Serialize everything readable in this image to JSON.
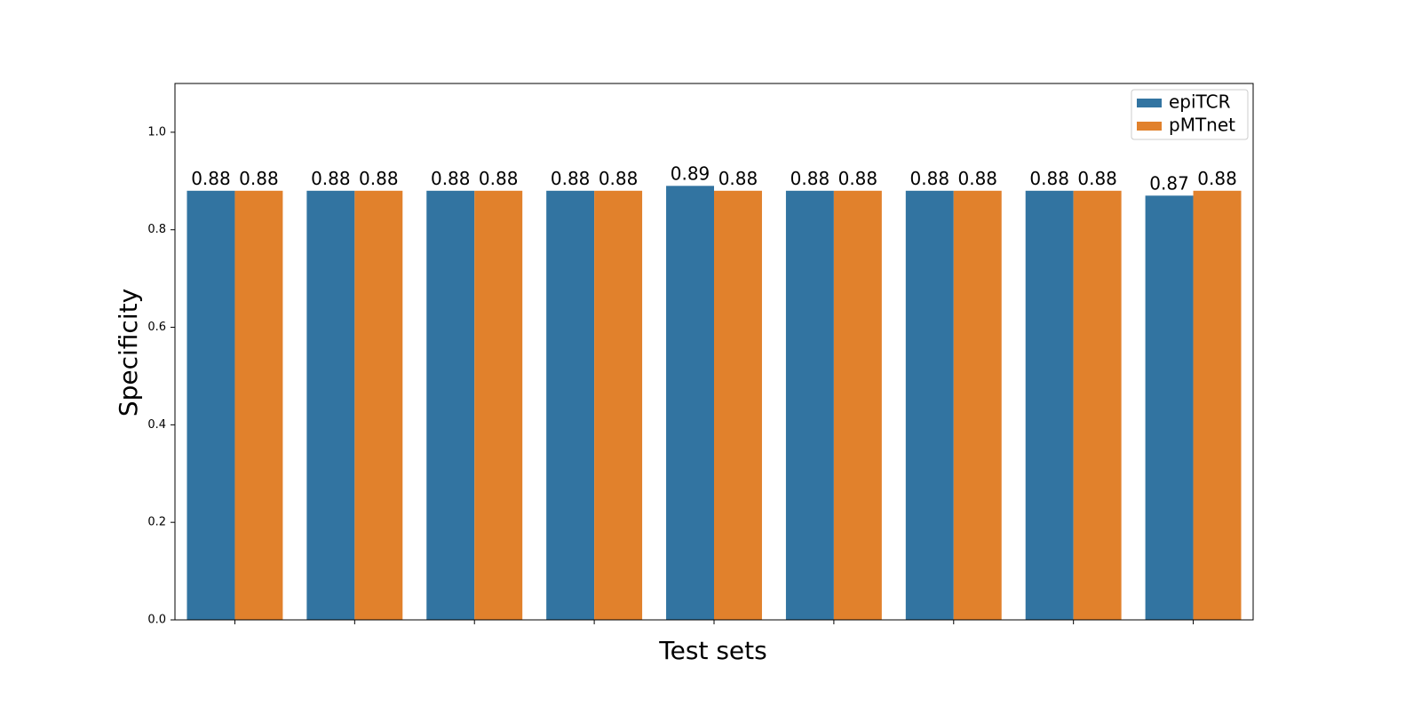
{
  "chart_data": {
    "type": "bar",
    "title": "",
    "xlabel": "Test sets",
    "ylabel": "Specificity",
    "ylim": [
      0,
      1.1
    ],
    "yticks": [
      0.0,
      0.2,
      0.4,
      0.6,
      0.8,
      1.0
    ],
    "ytick_labels": [
      "0.0",
      "0.2",
      "0.4",
      "0.6",
      "0.8",
      "1.0"
    ],
    "categories": [
      "",
      "",
      "",
      "",
      "",
      "",
      "",
      "",
      ""
    ],
    "series": [
      {
        "name": "epiTCR",
        "color": "#3274a1",
        "values": [
          0.88,
          0.88,
          0.88,
          0.88,
          0.89,
          0.88,
          0.88,
          0.88,
          0.87
        ],
        "labels": [
          "0.88",
          "0.88",
          "0.88",
          "0.88",
          "0.89",
          "0.88",
          "0.88",
          "0.88",
          "0.87"
        ]
      },
      {
        "name": "pMTnet",
        "color": "#e1812c",
        "values": [
          0.88,
          0.88,
          0.88,
          0.88,
          0.88,
          0.88,
          0.88,
          0.88,
          0.88
        ],
        "labels": [
          "0.88",
          "0.88",
          "0.88",
          "0.88",
          "0.88",
          "0.88",
          "0.88",
          "0.88",
          "0.88"
        ]
      }
    ],
    "legend": {
      "location": "upper right"
    },
    "grid": false
  }
}
